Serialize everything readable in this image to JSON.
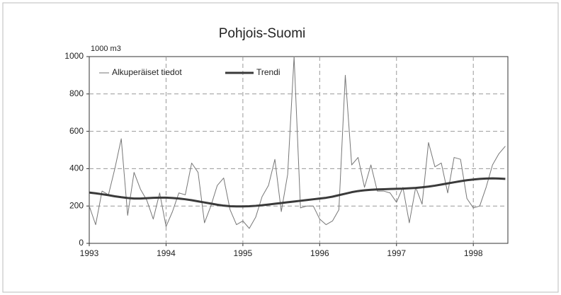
{
  "chart_data": {
    "type": "line",
    "title": "Pohjois-Suomi",
    "y_unit_label": "1000 m3",
    "x": [
      1993,
      1993.0833,
      1993.1667,
      1993.25,
      1993.3333,
      1993.4167,
      1993.5,
      1993.5833,
      1993.6667,
      1993.75,
      1993.8333,
      1993.9167,
      1994,
      1994.0833,
      1994.1667,
      1994.25,
      1994.3333,
      1994.4167,
      1994.5,
      1994.5833,
      1994.6667,
      1994.75,
      1994.8333,
      1994.9167,
      1995,
      1995.0833,
      1995.1667,
      1995.25,
      1995.3333,
      1995.4167,
      1995.5,
      1995.5833,
      1995.6667,
      1995.75,
      1995.8333,
      1995.9167,
      1996,
      1996.0833,
      1996.1667,
      1996.25,
      1996.3333,
      1996.4167,
      1996.5,
      1996.5833,
      1996.6667,
      1996.75,
      1996.8333,
      1996.9167,
      1997,
      1997.0833,
      1997.1667,
      1997.25,
      1997.3333,
      1997.4167,
      1997.5,
      1997.5833,
      1997.6667,
      1997.75,
      1997.8333,
      1997.9167,
      1998,
      1998.0833,
      1998.1667,
      1998.25,
      1998.3333,
      1998.4167
    ],
    "series": [
      {
        "name": "Alkuperäiset tiedot",
        "color": "#777777",
        "width": 1,
        "values": [
          200,
          100,
          280,
          260,
          400,
          560,
          150,
          380,
          290,
          230,
          130,
          270,
          90,
          170,
          270,
          260,
          430,
          380,
          110,
          200,
          310,
          350,
          180,
          100,
          120,
          80,
          140,
          250,
          310,
          450,
          170,
          370,
          1000,
          190,
          200,
          200,
          130,
          100,
          120,
          180,
          900,
          420,
          460,
          300,
          420,
          280,
          280,
          270,
          220,
          300,
          110,
          300,
          210,
          540,
          410,
          430,
          270,
          460,
          450,
          240,
          190,
          200,
          300,
          420,
          480,
          520
        ]
      },
      {
        "name": "Trendi",
        "color": "#3a3a3a",
        "width": 3,
        "values": [
          272,
          268,
          263,
          258,
          252,
          247,
          243,
          240,
          240,
          242,
          244,
          245,
          245,
          243,
          240,
          236,
          231,
          225,
          219,
          213,
          207,
          202,
          199,
          198,
          198,
          199,
          201,
          204,
          208,
          212,
          216,
          220,
          224,
          228,
          232,
          236,
          240,
          244,
          250,
          258,
          266,
          274,
          280,
          284,
          287,
          289,
          290,
          291,
          292,
          293,
          295,
          297,
          300,
          304,
          309,
          315,
          321,
          327,
          333,
          338,
          342,
          345,
          347,
          348,
          347,
          345
        ]
      }
    ],
    "xlim": [
      1993,
      1998.45
    ],
    "xticks": [
      1993,
      1994,
      1995,
      1996,
      1997,
      1998
    ],
    "ylim": [
      0,
      1000
    ],
    "yticks": [
      0,
      200,
      400,
      600,
      800,
      1000
    ],
    "grid": true
  }
}
